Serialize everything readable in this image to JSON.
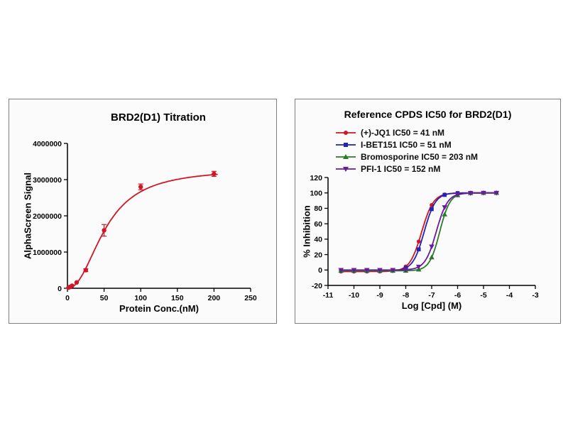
{
  "canvas": {
    "background": "#ffffff",
    "panel_background": "#fbfbfb",
    "panel_border": "#7f7f7f",
    "axis_color": "#000000"
  },
  "chart_data": [
    {
      "type": "scatter",
      "title": "BRD2(D1) Titration",
      "xlabel": "Protein Conc.(nM)",
      "ylabel": "AlphaScreen Signal",
      "xlim": [
        0,
        250
      ],
      "ylim": [
        0,
        4000000
      ],
      "xticks": [
        0,
        50,
        100,
        150,
        200,
        250
      ],
      "yticks": [
        0,
        1000000,
        2000000,
        3000000,
        4000000
      ],
      "grid": false,
      "legend_position": "none",
      "series": [
        {
          "name": "BRD2(D1) titration",
          "color": "#d01626",
          "marker": "circle",
          "points": [
            {
              "x": 1.56,
              "y": 20000
            },
            {
              "x": 3.13,
              "y": 35000
            },
            {
              "x": 6.25,
              "y": 70000
            },
            {
              "x": 12.5,
              "y": 160000
            },
            {
              "x": 25,
              "y": 500000,
              "err": 40000
            },
            {
              "x": 50,
              "y": 1600000,
              "err": 160000
            },
            {
              "x": 100,
              "y": 2800000,
              "err": 80000
            },
            {
              "x": 200,
              "y": 3160000,
              "err": 70000
            }
          ],
          "fit": {
            "model": "hill",
            "bmax": 3300000,
            "kd": 52,
            "n": 2.2,
            "xmin": 0,
            "xmax": 205
          }
        }
      ]
    },
    {
      "type": "line",
      "title": "Reference CPDS IC50 for BRD2(D1)",
      "xlabel": "Log [Cpd] (M)",
      "ylabel": "% Inhibition",
      "xlim": [
        -11,
        -3
      ],
      "ylim": [
        -20,
        120
      ],
      "xticks": [
        -11,
        -10,
        -9,
        -8,
        -7,
        -6,
        -5,
        -4,
        -3
      ],
      "yticks": [
        -20,
        0,
        20,
        40,
        60,
        80,
        100,
        120
      ],
      "grid": false,
      "legend_position": "top-left-inside",
      "x_points": [
        -10.5,
        -10,
        -9.5,
        -9,
        -8.5,
        -8,
        -7.5,
        -7,
        -6.5,
        -6,
        -5.5,
        -5,
        -4.5
      ],
      "series": [
        {
          "name": "(+)-JQ1 IC50 = 41 nM",
          "ic50_nm": 41,
          "color": "#d01626",
          "marker": "circle",
          "y": [
            -2,
            -2,
            -2,
            -1.9,
            -1.2,
            4.6,
            37,
            84.3,
            98,
            99.8,
            100,
            100,
            100
          ],
          "fit": {
            "model": "4pl",
            "bottom": -2,
            "top": 100,
            "logic50": -7.39,
            "hill": 1.9,
            "xmin": -10.5,
            "xmax": -4.5
          }
        },
        {
          "name": "I-BET151 IC50 = 51 nM",
          "ic50_nm": 51,
          "color": "#2323b5",
          "marker": "square",
          "y": [
            -1,
            -1,
            -1,
            -1,
            -0.6,
            2.7,
            26.8,
            79,
            97.4,
            99.7,
            100,
            100,
            100
          ],
          "fit": {
            "model": "4pl",
            "bottom": -1,
            "top": 100,
            "logic50": -7.29,
            "hill": 2.0,
            "xmin": -10.5,
            "xmax": -4.5
          }
        },
        {
          "name": "Bromosporine IC50 = 203 nM",
          "ic50_nm": 203,
          "color": "#2c7a2c",
          "marker": "triangle-up",
          "y": [
            -1,
            -1,
            -1,
            -1,
            -1,
            -0.9,
            0.7,
            16.4,
            72.1,
            97,
            99.8,
            100,
            100
          ],
          "fit": {
            "model": "4pl",
            "bottom": -1,
            "top": 100,
            "logic50": -6.69,
            "hill": 2.2,
            "xmin": -10.5,
            "xmax": -4.5
          }
        },
        {
          "name": "PFI-1 IC50 = 152 nM",
          "ic50_nm": 152,
          "color": "#6a1b9a",
          "marker": "triangle-down",
          "y": [
            0,
            0,
            0,
            0,
            0,
            0.4,
            4.2,
            30.4,
            81.4,
            97.8,
            99.7,
            100,
            100
          ],
          "fit": {
            "model": "4pl",
            "bottom": 0,
            "top": 100,
            "logic50": -6.82,
            "hill": 2.0,
            "xmin": -10.5,
            "xmax": -4.5
          }
        }
      ]
    }
  ]
}
